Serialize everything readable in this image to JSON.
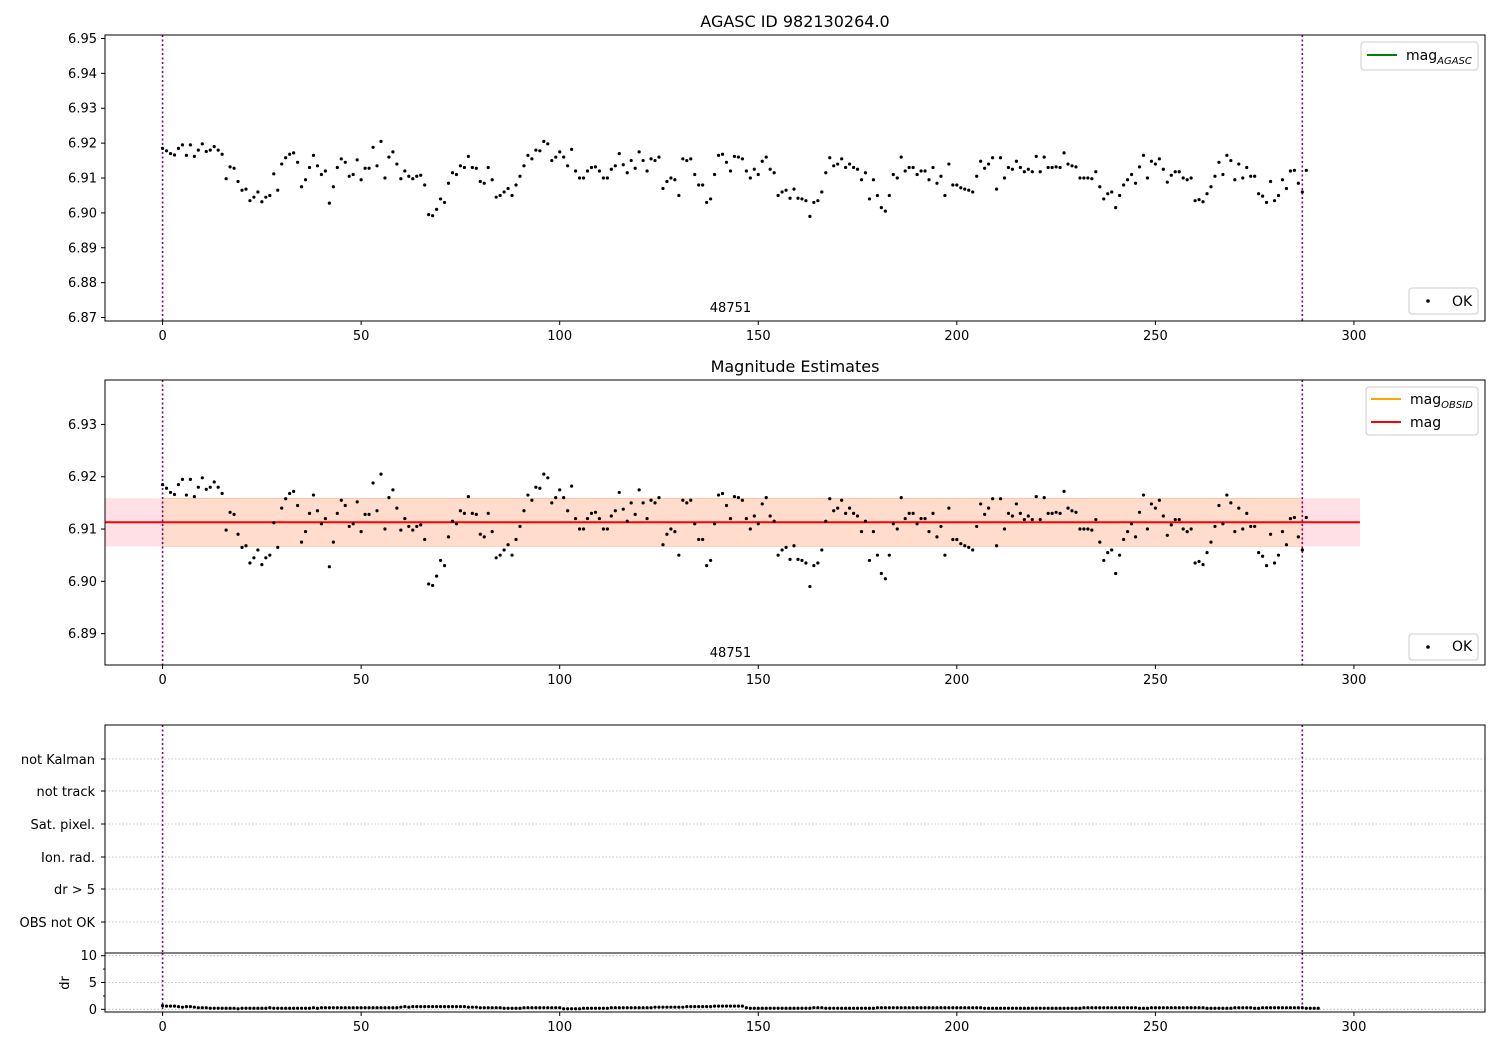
{
  "chart_data": [
    {
      "type": "scatter",
      "title": "AGASC ID 982130264.0",
      "xlabel": "",
      "ylabel": "",
      "xlim": [
        -14.5,
        333
      ],
      "ylim": [
        6.869,
        6.951
      ],
      "xticks": [
        0,
        50,
        100,
        150,
        200,
        250,
        300
      ],
      "yticks": [
        6.87,
        6.88,
        6.89,
        6.9,
        6.91,
        6.92,
        6.93,
        6.94,
        6.95
      ],
      "ytick_labels": [
        "6.87",
        "6.88",
        "6.89",
        "6.90",
        "6.91",
        "6.92",
        "6.93",
        "6.94",
        "6.95"
      ],
      "vlines": [
        0,
        287
      ],
      "annotation": {
        "text": "48751",
        "x": 143
      },
      "legend_upper": {
        "position": "upper right",
        "entries": [
          {
            "label": "mag",
            "subscript": "AGASC",
            "color": "#008000",
            "kind": "line"
          }
        ]
      },
      "legend_lower": {
        "position": "lower right",
        "entries": [
          {
            "label": "OK",
            "color": "#000000",
            "kind": "point"
          }
        ]
      },
      "series": [
        {
          "name": "OK",
          "kind": "points"
        }
      ]
    },
    {
      "type": "scatter",
      "title": "Magnitude Estimates",
      "xlabel": "",
      "ylabel": "",
      "xlim": [
        -14.5,
        333
      ],
      "ylim": [
        6.884,
        6.9385
      ],
      "xticks": [
        0,
        50,
        100,
        150,
        200,
        250,
        300
      ],
      "yticks": [
        6.89,
        6.9,
        6.91,
        6.92,
        6.93
      ],
      "ytick_labels": [
        "6.89",
        "6.90",
        "6.91",
        "6.92",
        "6.93"
      ],
      "vlines": [
        0,
        287
      ],
      "annotation": {
        "text": "48751",
        "x": 143
      },
      "mean_mag": 6.9113,
      "band": {
        "low": 6.9067,
        "high": 6.9159,
        "x_end": 301.5
      },
      "legend_upper": {
        "position": "upper right",
        "entries": [
          {
            "label": "mag",
            "subscript": "OBSID",
            "color": "#ffa500",
            "kind": "line"
          },
          {
            "label": "mag",
            "subscript": "",
            "color": "#ff0000",
            "kind": "line"
          }
        ]
      },
      "legend_lower": {
        "position": "lower right",
        "entries": [
          {
            "label": "OK",
            "color": "#000000",
            "kind": "point"
          }
        ]
      },
      "series": [
        {
          "name": "OK",
          "kind": "points"
        }
      ]
    },
    {
      "type": "scatter",
      "title": "",
      "flag_labels": [
        "not Kalman",
        "not track",
        "Sat. pixel.",
        "Ion. rad.",
        "dr > 5",
        "OBS not OK"
      ],
      "xlim": [
        -14.5,
        333
      ],
      "vlines": [
        0,
        287
      ]
    },
    {
      "type": "scatter",
      "title": "",
      "xlabel": "",
      "ylabel": "dr",
      "xlim": [
        -14.5,
        333
      ],
      "ylim": [
        -0.5,
        10.5
      ],
      "xticks": [
        0,
        50,
        100,
        150,
        200,
        250,
        300
      ],
      "yticks": [
        0,
        5,
        10
      ],
      "ytick_labels": [
        "0",
        "5",
        "10"
      ],
      "vlines": [
        0,
        287
      ]
    }
  ],
  "mag_points": [
    6.9185,
    6.9178,
    6.917,
    6.9166,
    6.9185,
    6.9195,
    6.9165,
    6.9195,
    6.9162,
    6.918,
    6.9198,
    6.9176,
    6.918,
    6.919,
    6.918,
    6.9168,
    6.9098,
    6.9132,
    6.9128,
    6.909,
    6.9065,
    6.9068,
    6.9035,
    6.9045,
    6.906,
    6.9032,
    6.9045,
    6.905,
    6.9112,
    6.9065,
    6.914,
    6.9158,
    6.9168,
    6.9172,
    6.9145,
    6.9075,
    6.9095,
    6.913,
    6.9165,
    6.9135,
    6.911,
    6.912,
    6.9028,
    6.9075,
    6.913,
    6.9155,
    6.9145,
    6.9105,
    6.911,
    6.9152,
    6.9095,
    6.9128,
    6.9128,
    6.9188,
    6.9135,
    6.9205,
    6.91,
    6.916,
    6.9175,
    6.914,
    6.9098,
    6.912,
    6.9105,
    6.9098,
    6.9105,
    6.9108,
    6.908,
    6.8995,
    6.8992,
    6.901,
    6.904,
    6.903,
    6.9085,
    6.9115,
    6.911,
    6.9135,
    6.913,
    6.9162,
    6.913,
    6.9128,
    6.909,
    6.9085,
    6.913,
    6.9095,
    6.9045,
    6.905,
    6.906,
    6.907,
    6.905,
    6.908,
    6.9105,
    6.9135,
    6.9165,
    6.9155,
    6.918,
    6.9178,
    6.9205,
    6.9198,
    6.915,
    6.916,
    6.9175,
    6.916,
    6.9135,
    6.9182,
    6.912,
    6.91,
    6.91,
    6.912,
    6.913,
    6.9132,
    6.912,
    6.91,
    6.91,
    6.9125,
    6.9135,
    6.917,
    6.9138,
    6.9115,
    6.915,
    6.9128,
    6.9175,
    6.915,
    6.912,
    6.9155,
    6.915,
    6.916,
    6.907,
    6.909,
    6.91,
    6.9095,
    6.905,
    6.9155,
    6.915,
    6.9155,
    6.911,
    6.908,
    6.908,
    6.903,
    6.904,
    6.911,
    6.9165,
    6.9168,
    6.9145,
    6.912,
    6.9162,
    6.916,
    6.9155,
    6.912,
    6.91,
    6.9125,
    6.911,
    6.9148,
    6.916,
    6.9125,
    6.9115,
    6.905,
    6.906,
    6.9065,
    6.9042,
    6.9068,
    6.9042,
    6.904,
    6.9035,
    6.899,
    6.903,
    6.9035,
    6.906,
    6.9115,
    6.9158,
    6.9135,
    6.914,
    6.9155,
    6.913,
    6.914,
    6.913,
    6.9125,
    6.9095,
    6.9115,
    6.904,
    6.9095,
    6.905,
    6.9015,
    6.9005,
    6.905,
    6.911,
    6.91,
    6.916,
    6.912,
    6.913,
    6.913,
    6.911,
    6.912,
    6.912,
    6.9095,
    6.913,
    6.9085,
    6.9105,
    6.905,
    6.914,
    6.908,
    6.908,
    6.9072,
    6.9068,
    6.9065,
    6.906,
    6.9105,
    6.9148,
    6.9128,
    6.914,
    6.9158,
    6.9068,
    6.9158,
    6.91,
    6.913,
    6.9125,
    6.9148,
    6.913,
    6.9118,
    6.9125,
    6.9118,
    6.9162,
    6.9118,
    6.916,
    6.913,
    6.913,
    6.9132,
    6.913,
    6.9172,
    6.914,
    6.9135,
    6.9132,
    6.91,
    6.91,
    6.91,
    6.9098,
    6.9118,
    6.9075,
    6.904,
    6.9055,
    6.906,
    6.9015,
    6.905,
    6.908,
    6.9095,
    6.911,
    6.9085,
    6.9132,
    6.9165,
    6.91,
    6.9148,
    6.914,
    6.9155,
    6.9125,
    6.9088,
    6.9108,
    6.9118,
    6.9118,
    6.91,
    6.9095,
    6.91,
    6.9035,
    6.9038,
    6.9032,
    6.9055,
    6.9075,
    6.9105,
    6.9145,
    6.911,
    6.9165,
    6.915,
    6.9095,
    6.914,
    6.91,
    6.913,
    6.9105,
    6.9105,
    6.9055,
    6.9048,
    6.903,
    6.909,
    6.9035,
    6.905,
    6.9095,
    6.907,
    6.912,
    6.9122,
    6.9085,
    6.906,
    6.9122
  ],
  "dr_points": [
    0.7,
    0.6,
    0.6,
    0.6,
    0.5,
    0.4,
    0.5,
    0.5,
    0.4,
    0.3,
    0.3,
    0.3,
    0.2,
    0.2,
    0.2,
    0.2,
    0.2,
    0.2,
    0.2,
    0.1,
    0.2,
    0.2,
    0.2,
    0.2,
    0.2,
    0.2,
    0.2,
    0.3,
    0.2,
    0.2,
    0.2,
    0.2,
    0.2,
    0.2,
    0.2,
    0.2,
    0.2,
    0.2,
    0.3,
    0.2,
    0.3,
    0.3,
    0.3,
    0.3,
    0.3,
    0.3,
    0.3,
    0.3,
    0.3,
    0.3,
    0.3,
    0.3,
    0.3,
    0.3,
    0.3,
    0.3,
    0.3,
    0.3,
    0.3,
    0.3,
    0.4,
    0.5,
    0.4,
    0.5,
    0.5,
    0.5,
    0.5,
    0.5,
    0.5,
    0.5,
    0.5,
    0.5,
    0.5,
    0.5,
    0.5,
    0.5,
    0.5,
    0.4,
    0.4,
    0.4,
    0.3,
    0.3,
    0.3,
    0.3,
    0.3,
    0.3,
    0.2,
    0.2,
    0.2,
    0.2,
    0.2,
    0.3,
    0.3,
    0.3,
    0.3,
    0.3,
    0.3,
    0.3,
    0.3,
    0.3,
    0.3,
    0.1,
    0.1,
    0.1,
    0.1,
    0.1,
    0.2,
    0.2,
    0.2,
    0.2,
    0.2,
    0.2,
    0.2,
    0.3,
    0.3,
    0.3,
    0.3,
    0.3,
    0.3,
    0.3,
    0.3,
    0.3,
    0.3,
    0.3,
    0.4,
    0.4,
    0.4,
    0.4,
    0.4,
    0.4,
    0.4,
    0.4,
    0.5,
    0.5,
    0.5,
    0.5,
    0.5,
    0.5,
    0.5,
    0.6,
    0.6,
    0.6,
    0.6,
    0.6,
    0.6,
    0.6,
    0.6,
    0.3,
    0.2,
    0.2,
    0.2,
    0.2,
    0.2,
    0.2,
    0.2,
    0.2,
    0.2,
    0.2,
    0.2,
    0.2,
    0.2,
    0.2,
    0.2,
    0.2,
    0.3,
    0.3,
    0.3,
    0.2,
    0.2,
    0.2,
    0.2,
    0.2,
    0.2,
    0.2,
    0.2,
    0.2,
    0.2,
    0.2,
    0.2,
    0.2,
    0.3,
    0.3,
    0.3,
    0.3,
    0.3,
    0.3,
    0.3,
    0.3,
    0.3,
    0.3,
    0.3,
    0.3,
    0.3,
    0.3,
    0.3,
    0.3,
    0.3,
    0.3,
    0.3,
    0.3,
    0.3,
    0.3,
    0.3,
    0.3,
    0.3,
    0.3,
    0.3,
    0.2,
    0.2,
    0.2,
    0.2,
    0.2,
    0.2,
    0.2,
    0.2,
    0.2,
    0.2,
    0.2,
    0.2,
    0.2,
    0.2,
    0.2,
    0.2,
    0.2,
    0.2,
    0.2,
    0.2,
    0.2,
    0.2,
    0.2,
    0.2,
    0.2,
    0.3,
    0.3,
    0.3,
    0.3,
    0.3,
    0.3,
    0.3,
    0.3,
    0.3,
    0.3,
    0.3,
    0.3,
    0.3,
    0.3,
    0.2,
    0.2,
    0.2,
    0.3,
    0.3,
    0.3,
    0.3,
    0.3,
    0.3,
    0.3,
    0.3,
    0.3,
    0.3,
    0.3,
    0.3,
    0.3,
    0.3,
    0.2,
    0.2,
    0.2,
    0.2,
    0.2,
    0.2,
    0.2,
    0.3,
    0.3,
    0.3,
    0.3,
    0.3,
    0.2,
    0.2,
    0.3,
    0.3,
    0.3,
    0.3,
    0.3,
    0.3,
    0.3,
    0.3,
    0.3,
    0.3,
    0.3,
    0.2,
    0.2,
    0.2,
    0.2
  ],
  "colors": {
    "points": "#000000",
    "vline": "#800080",
    "mean_line": "#ff0000",
    "band_outer": "#ffe0e6",
    "band_inner": "#ffdccc",
    "grid": "#b0b0b0"
  }
}
